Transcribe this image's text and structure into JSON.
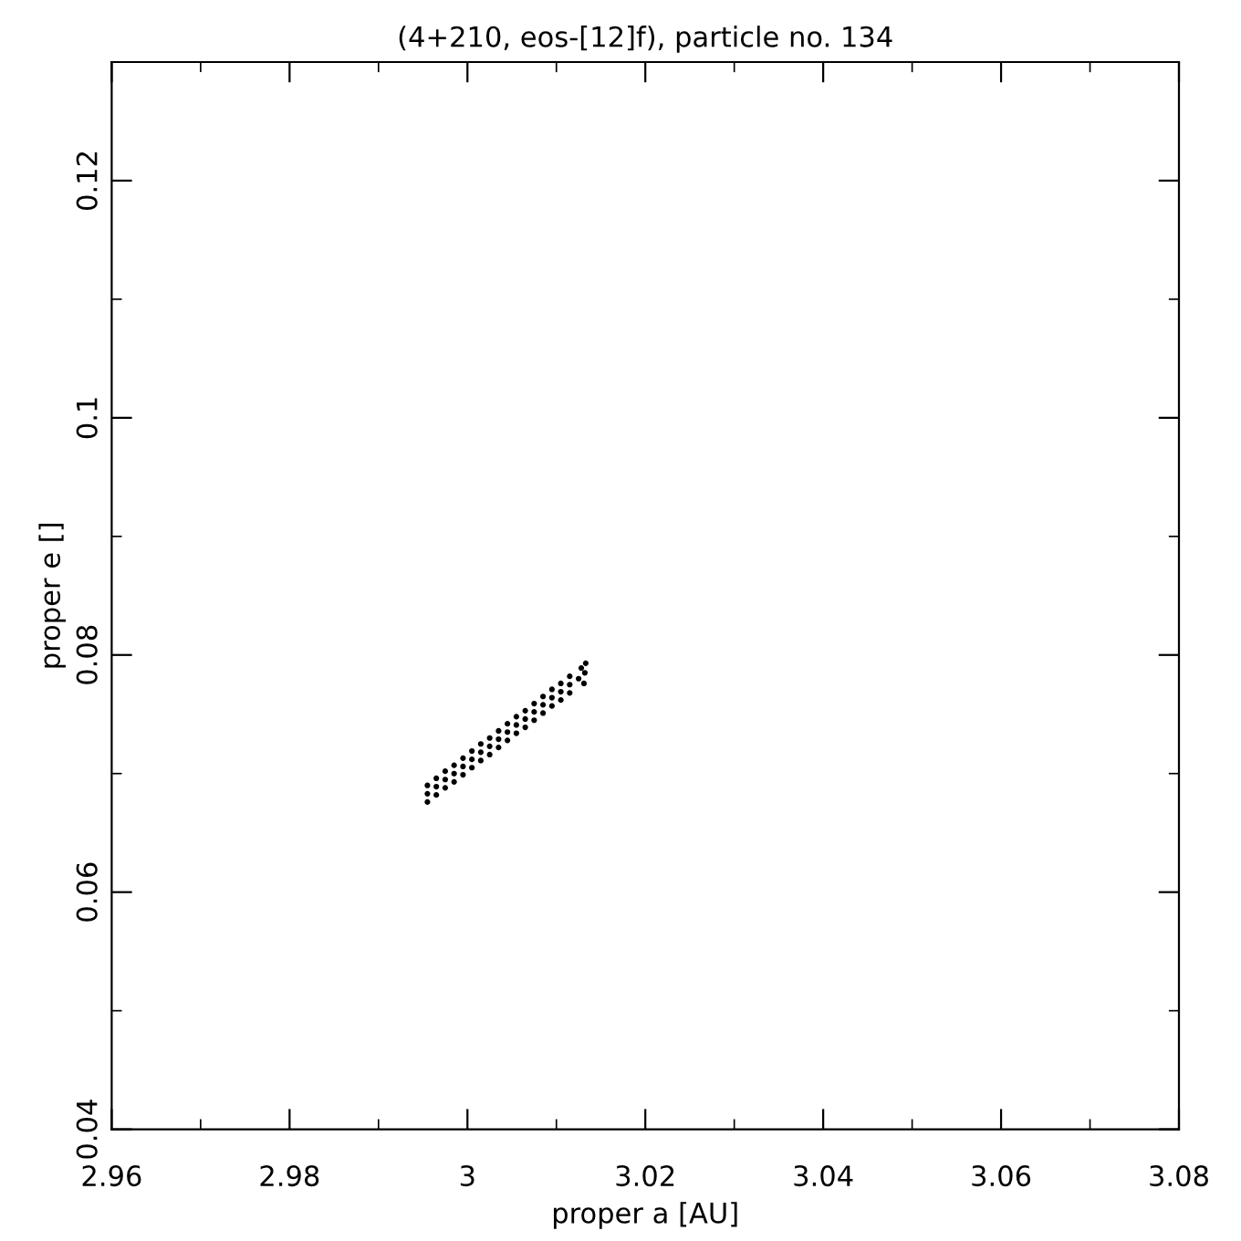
{
  "chart_data": {
    "type": "scatter",
    "title": "(4+210, eos-[12]f), particle no. 134",
    "xlabel": "proper a [AU]",
    "ylabel": "proper e []",
    "xlim": [
      2.96,
      3.08
    ],
    "xticks": [
      2.96,
      2.98,
      3,
      3.02,
      3.04,
      3.06,
      3.08
    ],
    "ylim": [
      0.04,
      0.13
    ],
    "yticks": [
      0.04,
      0.06,
      0.08,
      0.1,
      0.12
    ],
    "grid": false,
    "marker": "circle",
    "series": [
      {
        "color": "#000000",
        "x": [
          2.9955,
          2.9965,
          2.9975,
          2.9985,
          2.9995,
          3.0005,
          3.0015,
          3.0025,
          3.0035,
          3.0045,
          3.0055,
          3.0065,
          3.0075,
          3.0085,
          3.0095,
          3.0105,
          3.0115,
          2.9955,
          2.9965,
          2.9975,
          2.9985,
          2.9995,
          3.0005,
          3.0015,
          3.0025,
          3.0035,
          3.0045,
          3.0055,
          3.0065,
          3.0075,
          3.0085,
          3.0095,
          3.0105,
          3.0115,
          2.9955,
          2.9965,
          2.9975,
          2.9985,
          2.9995,
          3.0005,
          3.0015,
          3.0025,
          3.0035,
          3.0045,
          3.0055,
          3.0065,
          3.0075,
          3.0085,
          3.0095,
          3.0105,
          3.0115,
          3.0125,
          3.0132,
          3.0133,
          3.0131,
          3.0128
        ],
        "values": [
          0.0683,
          0.0689,
          0.0695,
          0.07,
          0.0706,
          0.0712,
          0.0718,
          0.0723,
          0.0729,
          0.0735,
          0.0741,
          0.0746,
          0.0752,
          0.0758,
          0.0764,
          0.0769,
          0.0775,
          0.069,
          0.0696,
          0.0702,
          0.0707,
          0.0713,
          0.0719,
          0.0725,
          0.073,
          0.0736,
          0.0742,
          0.0748,
          0.0753,
          0.0759,
          0.0765,
          0.0771,
          0.0776,
          0.0782,
          0.0676,
          0.0682,
          0.0688,
          0.0693,
          0.0699,
          0.0705,
          0.0711,
          0.0716,
          0.0722,
          0.0728,
          0.0734,
          0.0739,
          0.0745,
          0.0751,
          0.0757,
          0.0762,
          0.0768,
          0.078,
          0.0785,
          0.0793,
          0.0776,
          0.0789
        ]
      }
    ]
  }
}
